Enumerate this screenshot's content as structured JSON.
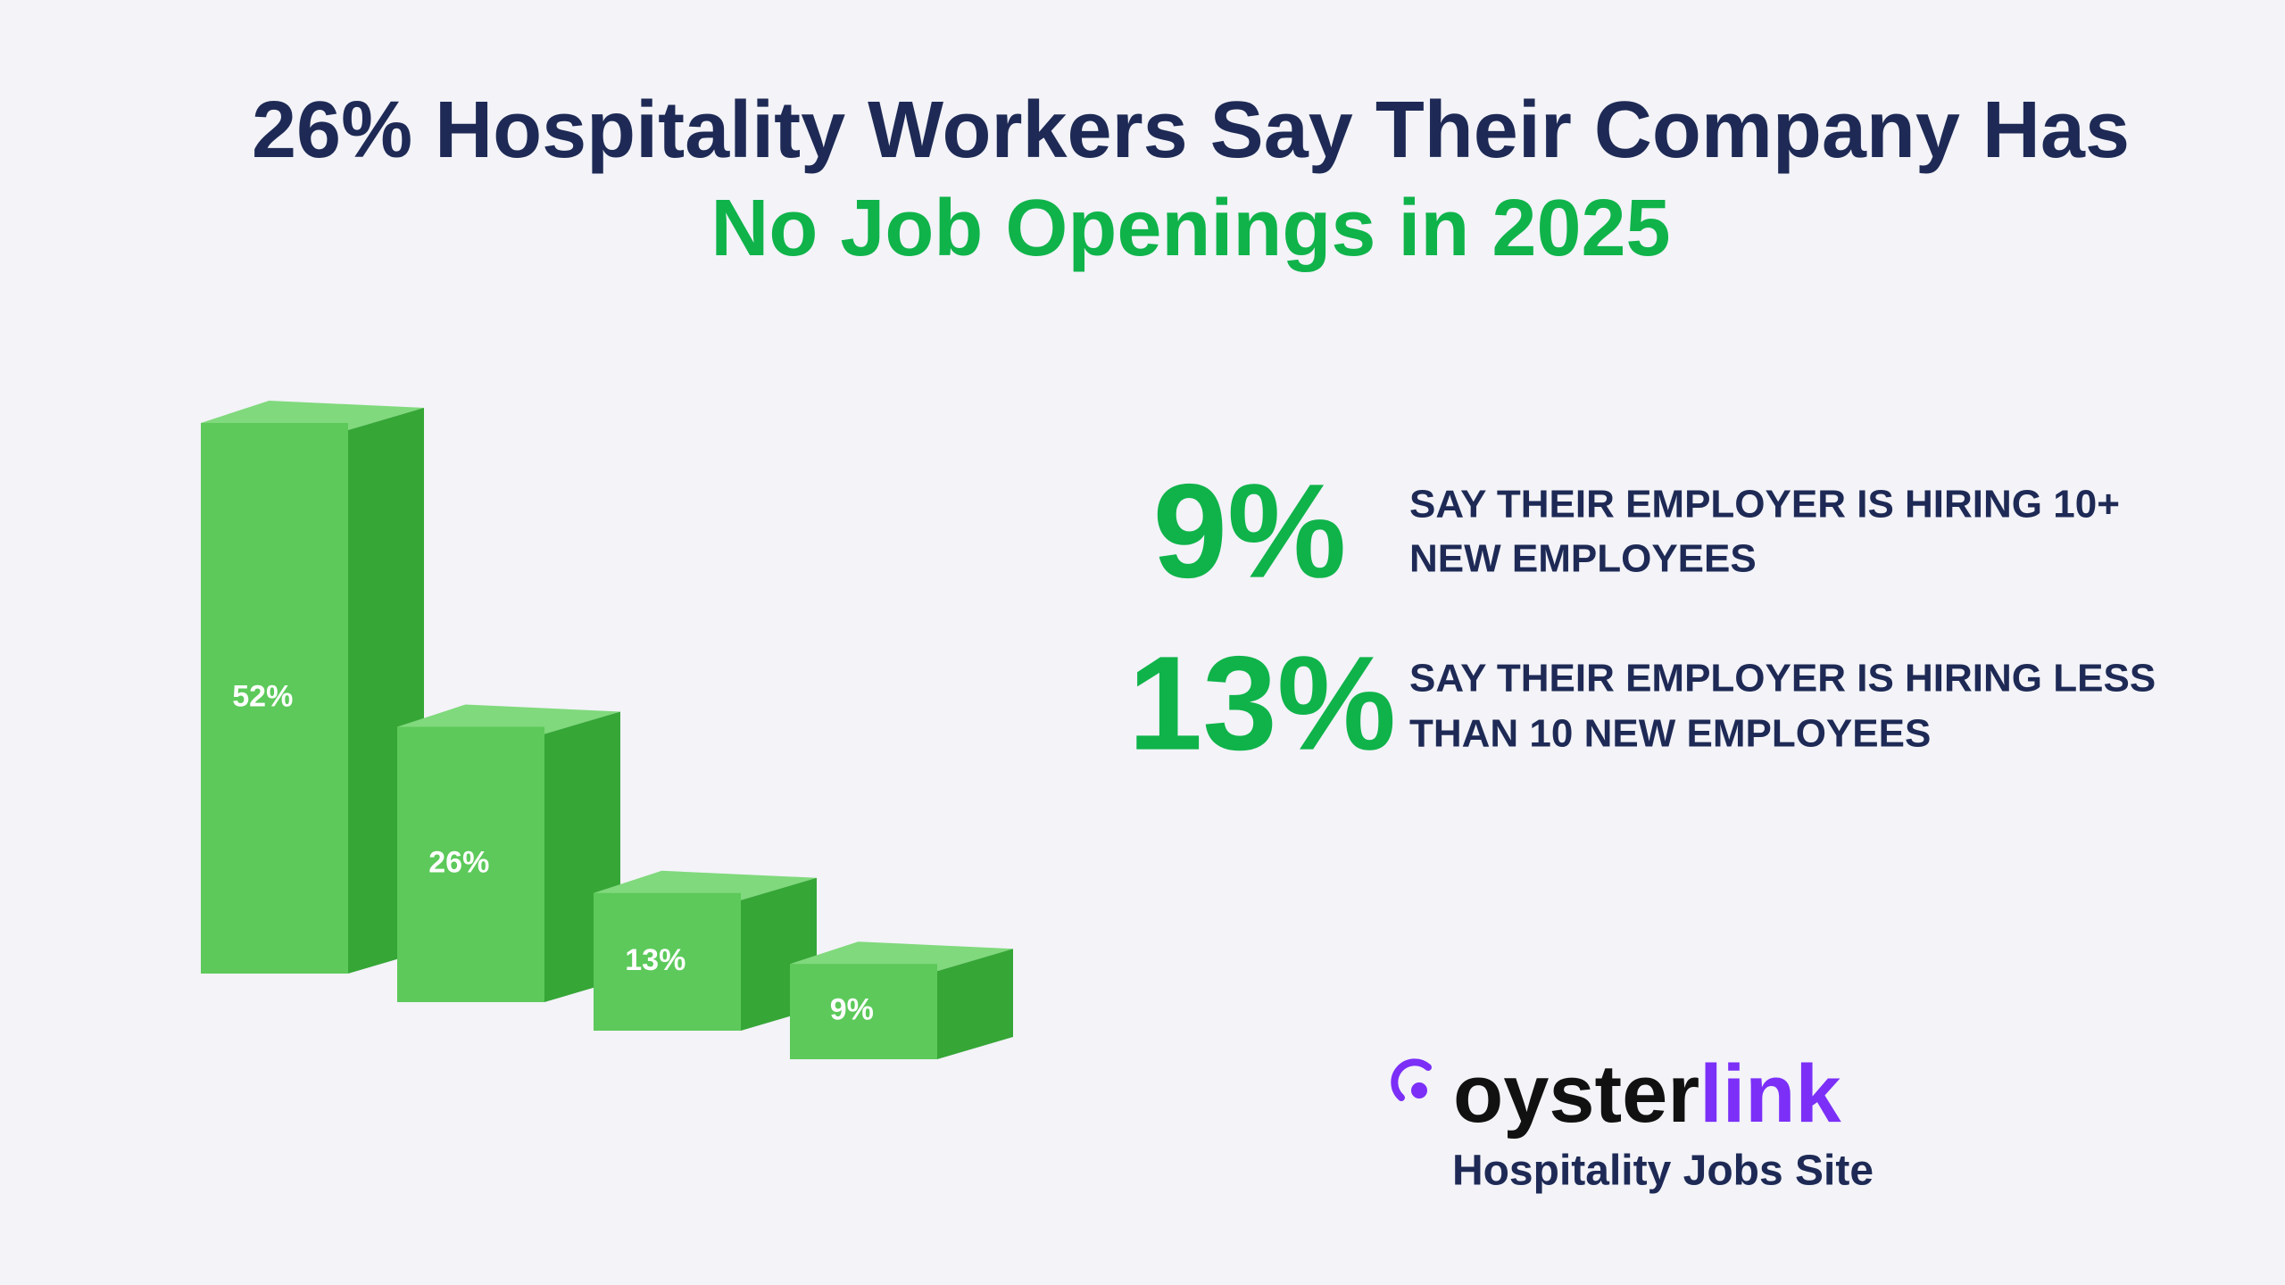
{
  "header": {
    "title_line1": "26% Hospitality Workers Say Their Company Has",
    "title_line2": "No Job Openings in 2025"
  },
  "chart_data": {
    "type": "bar",
    "values": [
      52,
      26,
      13,
      9
    ],
    "value_labels": [
      "52%",
      "26%",
      "13%",
      "9%"
    ],
    "color": "#5cc95a"
  },
  "stats": [
    {
      "figure": "9%",
      "text_line1": "SAY THEIR EMPLOYER IS HIRING 10+",
      "text_line2": "NEW EMPLOYEES"
    },
    {
      "figure": "13%",
      "text_line1": "SAY THEIR EMPLOYER IS HIRING LESS",
      "text_line2": "THAN 10 NEW EMPLOYEES"
    }
  ],
  "logo": {
    "name_part1": "oyster",
    "name_part2": "link",
    "tagline": "Hospitality Jobs Site"
  }
}
